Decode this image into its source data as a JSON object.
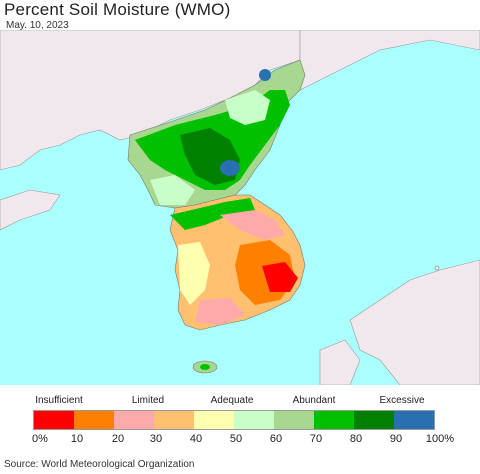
{
  "title": "Percent Soil Moisture (WMO)",
  "date": "May. 10, 2023",
  "legend": {
    "categories": [
      "Insufficient",
      "Limited",
      "Adequate",
      "Abundant",
      "Excessive"
    ],
    "colors": [
      "#ff0000",
      "#ff8000",
      "#ffaaaa",
      "#ffc070",
      "#ffffb0",
      "#c8ffc8",
      "#a8d890",
      "#00c000",
      "#008000",
      "#2a70b0"
    ],
    "ticks": [
      "0%",
      "10",
      "20",
      "30",
      "40",
      "50",
      "60",
      "70",
      "80",
      "90",
      "100%"
    ]
  },
  "source": "Source: World Meteorological Organization",
  "colors": {
    "sea": "#aaffff",
    "land_other": "#f0e8ec",
    "border": "#888888"
  }
}
